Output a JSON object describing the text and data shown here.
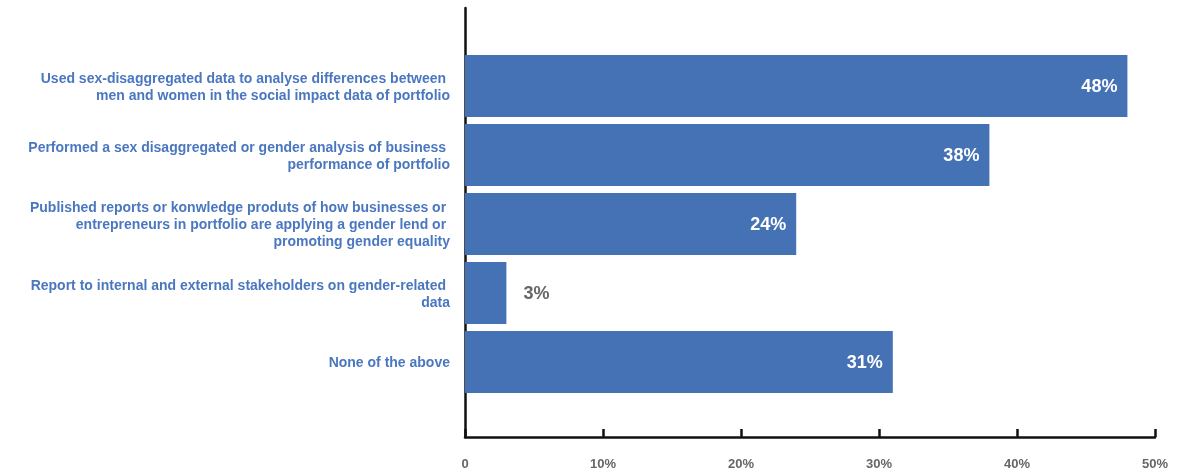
{
  "chart_data": {
    "type": "bar",
    "orientation": "horizontal",
    "categories": [
      "Used sex-disaggregated data to analyse differences between men and women in the social impact data of portfolio",
      "Performed a sex disaggregated or gender analysis of business performance of portfolio",
      "Published reports or konwledge produts of how businesses or entrepreneurs in portfolio are applying a gender lend or promoting gender equality",
      "Report to internal and external stakeholders on gender-related data",
      "None of the above"
    ],
    "values": [
      48,
      38,
      24,
      3,
      31
    ],
    "color": "#4472b4",
    "value_labels": [
      "48%",
      "38%",
      "24%",
      "3%",
      "31%"
    ],
    "xlim": [
      0,
      50
    ],
    "xticks": [
      0,
      {
        "value": 10,
        "label": "10%"
      },
      {
        "value": 20,
        "label": "20%"
      },
      {
        "value": 30,
        "label": "30%"
      },
      {
        "value": 40,
        "label": "40%"
      },
      {
        "value": 50,
        "label": "50%"
      }
    ]
  }
}
